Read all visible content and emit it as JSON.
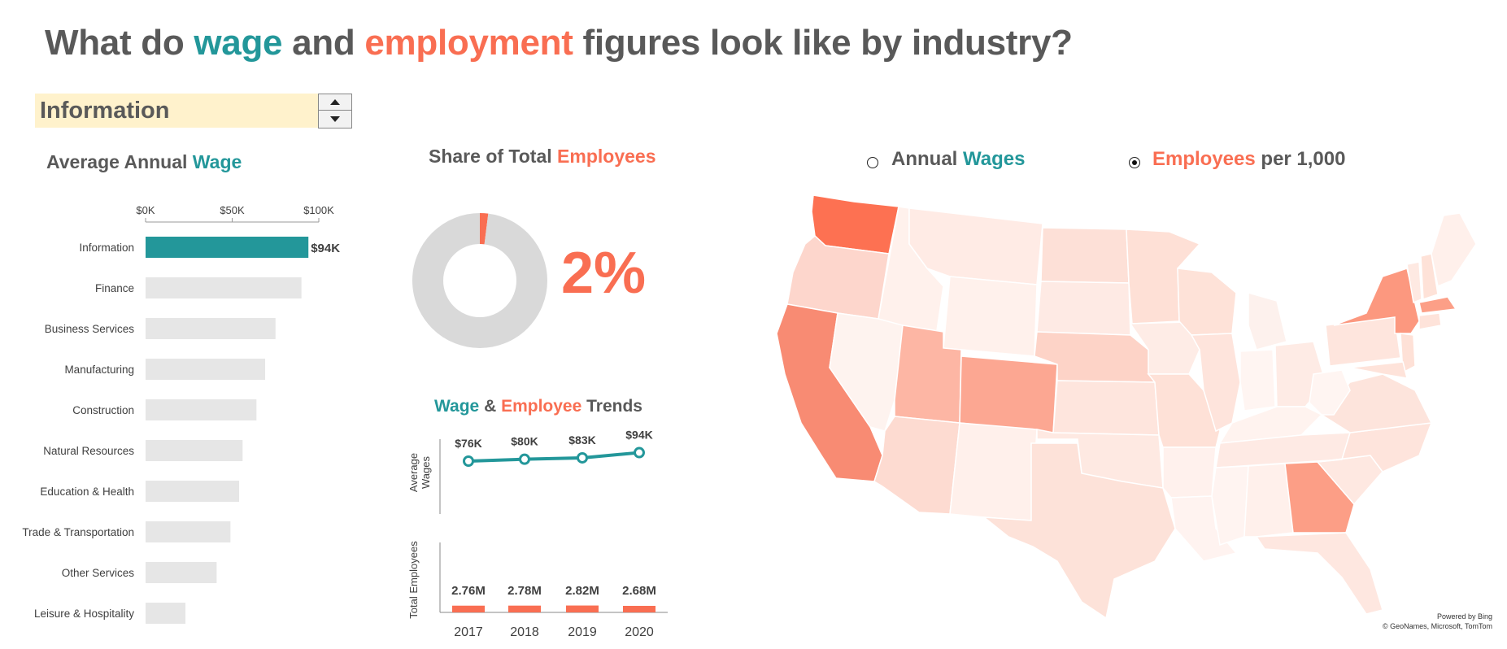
{
  "title": {
    "pre": "What do ",
    "wage": "wage",
    "mid": " and ",
    "employment": "employment",
    "post": " figures look like by industry?"
  },
  "selector": {
    "value": "Information"
  },
  "wage_panel": {
    "title_pre": "Average Annual ",
    "title_accent": "Wage"
  },
  "share_panel": {
    "title_pre": "Share of Total ",
    "title_accent": "Employees",
    "big_value": "2%"
  },
  "trends_panel": {
    "title_a": "Wage",
    "title_amp": " & ",
    "title_b": "Employee",
    "title_c": " Trends"
  },
  "map_toggle": {
    "option1_pre": "Annual ",
    "option1_accent": "Wages",
    "option2_accent": "Employees",
    "option2_post": " per 1,000",
    "selected": "Employees per 1,000"
  },
  "map_credit": {
    "line1": "Powered by Bing",
    "line2": "© GeoNames, Microsoft, TomTom"
  },
  "colors": {
    "teal": "#23979a",
    "coral": "#f96e52",
    "bar_grey": "#e6e6e6",
    "donut_grey": "#d9d9d9",
    "title_grey": "#595959",
    "selector_bg": "#fff2cc"
  },
  "chart_data": [
    {
      "type": "bar",
      "title": "Average Annual Wage",
      "categories": [
        "Information",
        "Finance",
        "Business Services",
        "Manufacturing",
        "Construction",
        "Natural Resources",
        "Education & Health",
        "Trade & Transportation",
        "Other Services",
        "Leisure & Hospitality"
      ],
      "values": [
        94,
        90,
        75,
        69,
        64,
        56,
        54,
        49,
        41,
        23
      ],
      "highlight_index": 0,
      "highlight_label": "$94K",
      "xticks": [
        "$0K",
        "$50K",
        "$100K"
      ],
      "xlim": [
        0,
        100
      ]
    },
    {
      "type": "pie",
      "title": "Share of Total Employees",
      "slices": [
        {
          "label": "Information",
          "value": 2
        },
        {
          "label": "Other",
          "value": 98
        }
      ],
      "center_label": "2%"
    },
    {
      "type": "line",
      "title": "Wage & Employee Trends",
      "ylabel": "Average Wages",
      "x": [
        "2017",
        "2018",
        "2019",
        "2020"
      ],
      "values": [
        76,
        80,
        83,
        94
      ],
      "labels": [
        "$76K",
        "$80K",
        "$83K",
        "$94K"
      ]
    },
    {
      "type": "bar",
      "ylabel": "Total Employees",
      "categories": [
        "2017",
        "2018",
        "2019",
        "2020"
      ],
      "values": [
        2.76,
        2.78,
        2.82,
        2.68
      ],
      "labels": [
        "2.76M",
        "2.78M",
        "2.82M",
        "2.68M"
      ]
    }
  ]
}
